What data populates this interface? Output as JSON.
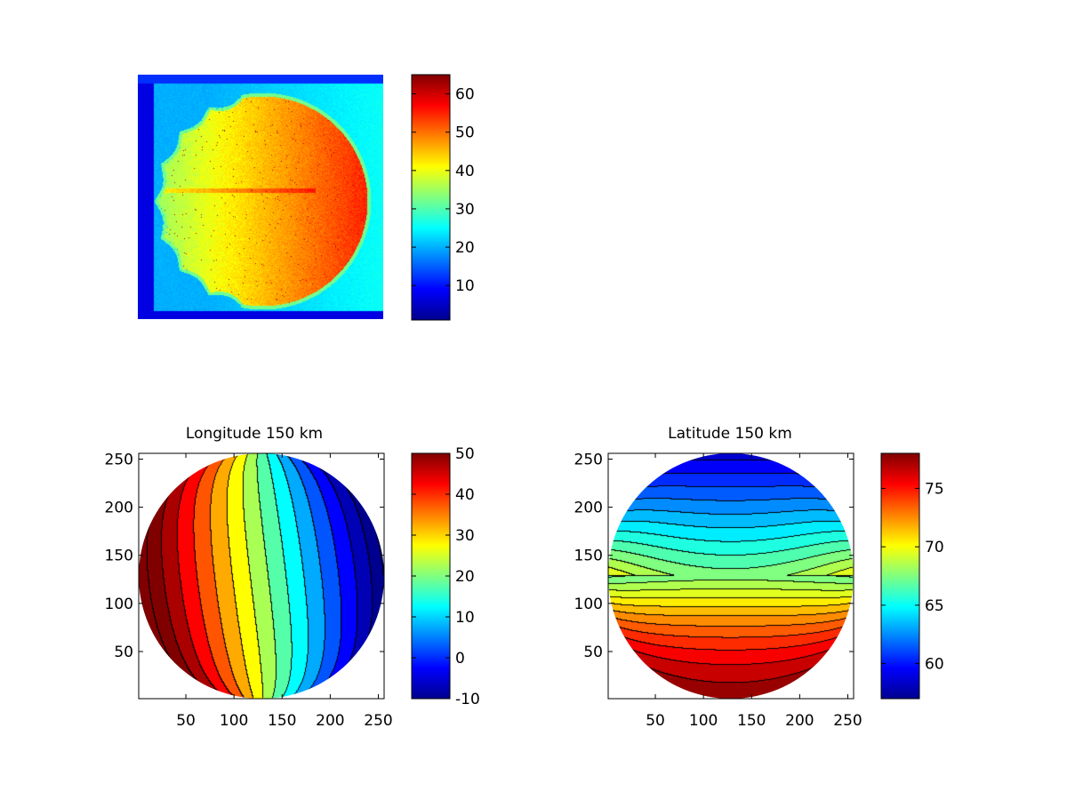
{
  "jet_colors": [
    "#00008f",
    "#0000ff",
    "#0080ff",
    "#00ffff",
    "#80ff80",
    "#ffff00",
    "#ff8000",
    "#ff0000",
    "#800000"
  ],
  "chart_data": [
    {
      "type": "heatmap",
      "title": "",
      "xlabel": "",
      "ylabel": "",
      "axes_visible": false,
      "colorbar": {
        "range": [
          1,
          65
        ],
        "ticks": [
          10,
          20,
          30,
          40,
          50,
          60
        ],
        "tick_labels": [
          "10",
          "20",
          "30",
          "40",
          "50",
          "60"
        ]
      },
      "description_values": {
        "background_level": 20,
        "disk_level": 45,
        "east_edge_level": 55,
        "corner_level": 3
      }
    },
    {
      "type": "heatmap",
      "style": "filled-contour",
      "title": "Longitude 150 km",
      "xlabel": "",
      "ylabel": "",
      "xlim": [
        1,
        256
      ],
      "ylim": [
        1,
        256
      ],
      "xticks": [
        50,
        100,
        150,
        200,
        250
      ],
      "xtick_labels": [],
      "yticks": [
        50,
        100,
        150,
        200,
        250
      ],
      "ytick_labels": [
        "50",
        "100",
        "150",
        "200",
        "250"
      ],
      "contour_range": [
        -10,
        50
      ],
      "contour_step": 5,
      "colorbar": {
        "range": [
          -10,
          50
        ],
        "ticks": [
          -10,
          0,
          10,
          20,
          30,
          40,
          50
        ],
        "tick_labels": [
          "-10",
          "0",
          "10",
          "20",
          "30",
          "40",
          "50"
        ]
      }
    },
    {
      "type": "heatmap",
      "style": "filled-contour",
      "title": "Latitude 150 km",
      "xlabel": "",
      "ylabel": "",
      "xlim": [
        1,
        256
      ],
      "ylim": [
        1,
        256
      ],
      "xticks": [
        50,
        100,
        150,
        200,
        250
      ],
      "xtick_labels": [
        "50",
        "100",
        "150",
        "200",
        "250"
      ],
      "yticks": [
        50,
        100,
        150,
        200,
        250
      ],
      "ytick_labels": [
        "50",
        "100",
        "150",
        "200",
        "250"
      ],
      "contour_range": [
        57,
        78
      ],
      "contour_step": 1,
      "colorbar": {
        "range": [
          57,
          78
        ],
        "ticks": [
          60,
          65,
          70,
          75
        ],
        "tick_labels": [
          "60",
          "65",
          "70",
          "75"
        ]
      }
    }
  ],
  "figure_xtick_labels_below_left": [
    "50",
    "100",
    "150",
    "200",
    "250"
  ]
}
